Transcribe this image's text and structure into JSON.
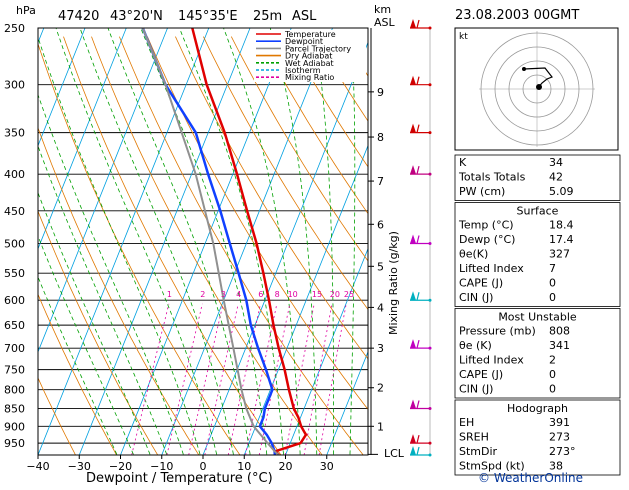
{
  "header": {
    "station": "47420",
    "lat": "43°20'N",
    "lon": "145°35'E",
    "elev": "25m",
    "asl": "ASL",
    "datetime": "23.08.2003 00GMT"
  },
  "axes": {
    "hpa_label": "hPa",
    "km_label": "km",
    "asl_label": "ASL",
    "xlabel": "Dewpoint / Temperature (°C)",
    "mix_label": "Mixing Ratio (g/kg)",
    "lcl_label": "LCL"
  },
  "legend": [
    {
      "label": "Temperature",
      "color": "#e00000"
    },
    {
      "label": "Dewpoint",
      "color": "#1040ff"
    },
    {
      "label": "Parcel Trajectory",
      "color": "#909090"
    },
    {
      "label": "Dry Adiabat",
      "color": "#e07800"
    },
    {
      "label": "Wet Adiabat",
      "color": "#00a000"
    },
    {
      "label": "Isotherm",
      "color": "#00a0e0"
    },
    {
      "label": "Mixing Ratio",
      "color": "#e000a0"
    }
  ],
  "chart_data": {
    "type": "line",
    "title": "47420 43°20'N 145°35'E 25m ASL",
    "xlabel": "Dewpoint / Temperature (°C)",
    "ylabel": "hPa",
    "xlim": [
      -40,
      40
    ],
    "ylim": [
      1000,
      250
    ],
    "x_ticks": [
      "−40",
      "−30",
      "−20",
      "−10",
      "0",
      "10",
      "20",
      "30"
    ],
    "pressure_levels": [
      "250",
      "300",
      "350",
      "400",
      "450",
      "500",
      "550",
      "600",
      "650",
      "700",
      "750",
      "800",
      "850",
      "900",
      "950"
    ],
    "km_ticks": [
      "1",
      "2",
      "3",
      "4",
      "5",
      "6",
      "7",
      "8",
      "9"
    ],
    "mixing_ratio_labels": [
      "1",
      "2",
      "3",
      "4",
      "6",
      "8",
      "10",
      "15",
      "20",
      "25"
    ],
    "series": [
      {
        "name": "Temperature",
        "color": "#e00000",
        "points": [
          [
            1000,
            18.4
          ],
          [
            975,
            17.2
          ],
          [
            950,
            22.5
          ],
          [
            925,
            23.0
          ],
          [
            900,
            21.0
          ],
          [
            875,
            19.5
          ],
          [
            850,
            17.5
          ],
          [
            800,
            14.5
          ],
          [
            750,
            11.5
          ],
          [
            700,
            8.0
          ],
          [
            650,
            4.5
          ],
          [
            600,
            1.0
          ],
          [
            550,
            -3.0
          ],
          [
            500,
            -7.5
          ],
          [
            450,
            -13.0
          ],
          [
            400,
            -19.0
          ],
          [
            350,
            -26.0
          ],
          [
            300,
            -35.0
          ],
          [
            250,
            -44.0
          ]
        ]
      },
      {
        "name": "Dewpoint",
        "color": "#1040ff",
        "points": [
          [
            1000,
            17.4
          ],
          [
            975,
            17.0
          ],
          [
            950,
            15.5
          ],
          [
            925,
            13.5
          ],
          [
            900,
            11.0
          ],
          [
            875,
            11.0
          ],
          [
            850,
            10.5
          ],
          [
            800,
            10.5
          ],
          [
            750,
            7.0
          ],
          [
            700,
            3.0
          ],
          [
            650,
            -1.0
          ],
          [
            600,
            -4.5
          ],
          [
            550,
            -9.0
          ],
          [
            500,
            -14.0
          ],
          [
            450,
            -19.5
          ],
          [
            400,
            -26.0
          ],
          [
            350,
            -33.0
          ],
          [
            300,
            -45.0
          ],
          [
            250,
            -56.0
          ]
        ]
      },
      {
        "name": "Parcel Trajectory",
        "color": "#909090",
        "points": [
          [
            1000,
            18.4
          ],
          [
            975,
            17.0
          ],
          [
            950,
            14.5
          ],
          [
            900,
            9.5
          ],
          [
            850,
            6.0
          ],
          [
            800,
            3.0
          ],
          [
            700,
            -3.0
          ],
          [
            600,
            -10.0
          ],
          [
            500,
            -18.0
          ],
          [
            400,
            -29.0
          ],
          [
            300,
            -45.0
          ],
          [
            250,
            -56.0
          ]
        ]
      }
    ]
  },
  "hodograph": {
    "label": "kt"
  },
  "indices": {
    "rows": [
      {
        "label": "K",
        "value": "34"
      },
      {
        "label": "Totals Totals",
        "value": "42"
      },
      {
        "label": "PW (cm)",
        "value": "5.09"
      }
    ],
    "surface": {
      "title": "Surface",
      "rows": [
        {
          "label": "Temp (°C)",
          "value": "18.4"
        },
        {
          "label": "Dewp (°C)",
          "value": "17.4"
        },
        {
          "label": "θe(K)",
          "value": "327"
        },
        {
          "label": "Lifted Index",
          "value": "7"
        },
        {
          "label": "CAPE (J)",
          "value": "0"
        },
        {
          "label": "CIN (J)",
          "value": "0"
        }
      ]
    },
    "most_unstable": {
      "title": "Most Unstable",
      "rows": [
        {
          "label": "Pressure (mb)",
          "value": "808"
        },
        {
          "label": "θe (K)",
          "value": "341"
        },
        {
          "label": "Lifted Index",
          "value": "2"
        },
        {
          "label": "CAPE (J)",
          "value": "0"
        },
        {
          "label": "CIN (J)",
          "value": "0"
        }
      ]
    },
    "hodograph": {
      "title": "Hodograph",
      "rows": [
        {
          "label": "EH",
          "value": "391"
        },
        {
          "label": "SREH",
          "value": "273"
        },
        {
          "label": "StmDir",
          "value": "273°"
        },
        {
          "label": "StmSpd (kt)",
          "value": "38"
        }
      ]
    }
  },
  "footer": {
    "copyright": "© WeatherOnline"
  }
}
